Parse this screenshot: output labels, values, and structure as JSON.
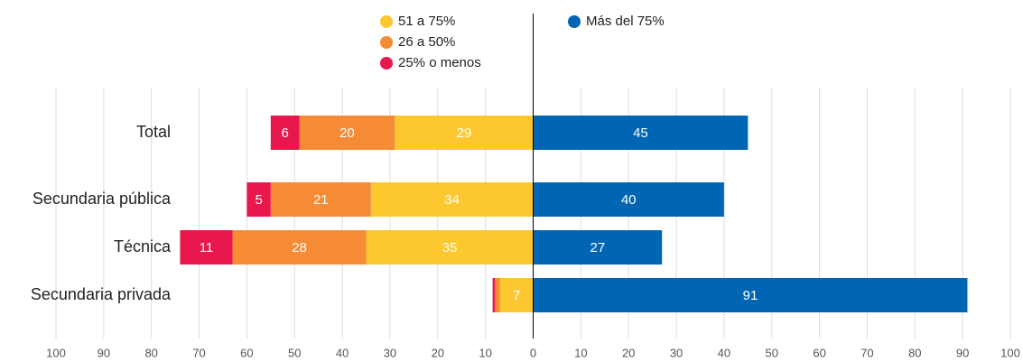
{
  "chart_data": {
    "type": "diverging-bar",
    "categories": [
      "Total",
      "Secundaria pública",
      "Técnica",
      "Secundaria privada"
    ],
    "series": [
      {
        "name": "Más del 75%",
        "color": "#0066b3",
        "values": [
          45,
          40,
          27,
          91
        ]
      },
      {
        "name": "51 a 75%",
        "color": "#fdc82f",
        "values": [
          29,
          34,
          35,
          7
        ]
      },
      {
        "name": "26 a 50%",
        "color": "#f58b35",
        "values": [
          20,
          21,
          28,
          1
        ]
      },
      {
        "name": "25% o menos",
        "color": "#e8184f",
        "values": [
          6,
          5,
          11,
          0.5
        ]
      }
    ],
    "xlim": [
      -100,
      100
    ],
    "xticks": [
      {
        "value": -100,
        "label": "100"
      },
      {
        "value": -90,
        "label": "90"
      },
      {
        "value": -80,
        "label": "80"
      },
      {
        "value": -70,
        "label": "70"
      },
      {
        "value": -60,
        "label": "60"
      },
      {
        "value": -50,
        "label": "50"
      },
      {
        "value": -40,
        "label": "40"
      },
      {
        "value": -30,
        "label": "30"
      },
      {
        "value": -20,
        "label": "20"
      },
      {
        "value": -10,
        "label": "10"
      },
      0,
      10,
      20,
      30,
      40,
      50,
      60,
      70,
      80,
      90,
      100
    ],
    "grid": true
  }
}
